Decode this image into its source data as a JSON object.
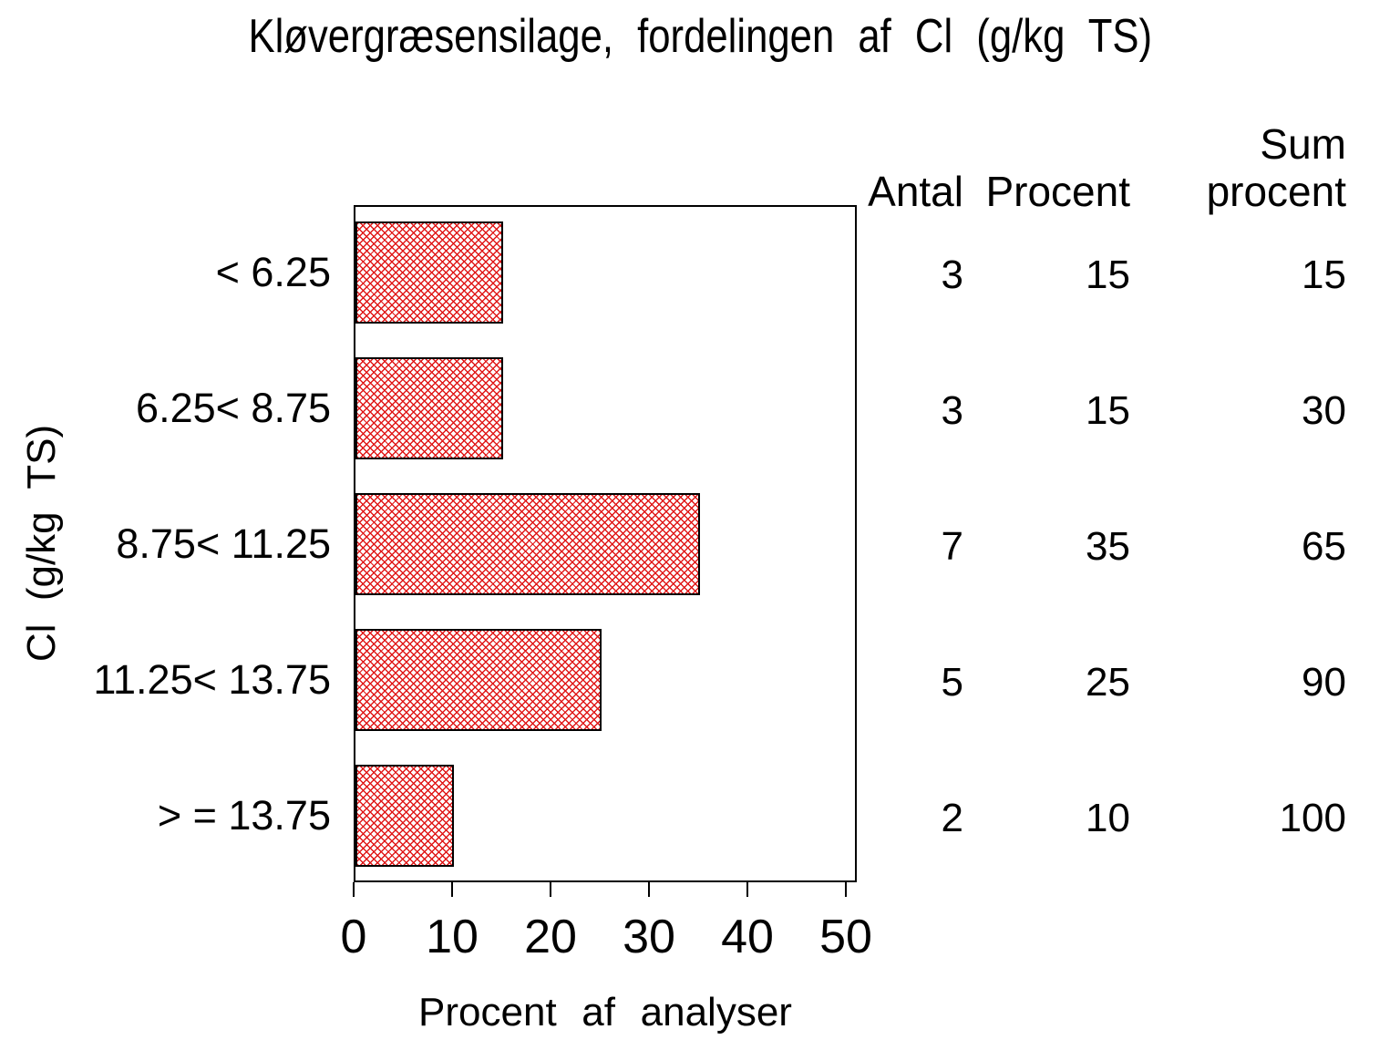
{
  "chart_data": {
    "type": "bar",
    "orientation": "horizontal",
    "title": "Kløvergræsensilage, fordelingen af Cl (g/kg TS)",
    "xlabel": "Procent af analyser",
    "ylabel": "Cl (g/kg TS)",
    "categories": [
      "< 6.25",
      "6.25< 8.75",
      "8.75< 11.25",
      "11.25< 13.75",
      "> = 13.75"
    ],
    "values": [
      15,
      15,
      35,
      25,
      10
    ],
    "xlim": [
      0,
      50
    ],
    "xticks": [
      0,
      10,
      20,
      30,
      40,
      50
    ],
    "grid": false,
    "legend": "none",
    "bar_style": {
      "fill_pattern": "diagonal-crosshatch",
      "pattern_color": "#e01818",
      "border_color": "#000000",
      "background": "#ffffff"
    },
    "side_table": {
      "columns": [
        "Antal",
        "Procent",
        "Sum procent"
      ],
      "sum_header_line1": "Sum",
      "sum_header_line2": "procent",
      "rows": [
        [
          3,
          15,
          15
        ],
        [
          3,
          15,
          30
        ],
        [
          7,
          35,
          65
        ],
        [
          5,
          25,
          90
        ],
        [
          2,
          10,
          100
        ]
      ]
    }
  }
}
